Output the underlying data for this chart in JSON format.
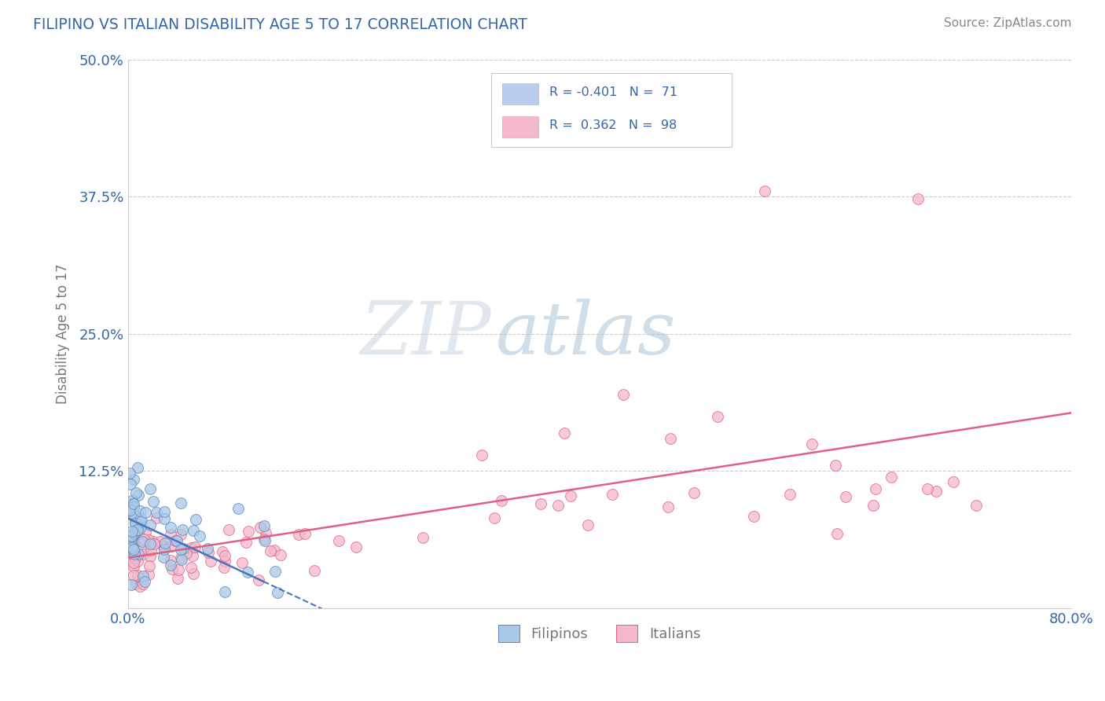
{
  "title": "FILIPINO VS ITALIAN DISABILITY AGE 5 TO 17 CORRELATION CHART",
  "source_text": "Source: ZipAtlas.com",
  "ylabel": "Disability Age 5 to 17",
  "xlim": [
    0.0,
    0.8
  ],
  "ylim": [
    0.0,
    0.5
  ],
  "ytick_positions": [
    0.125,
    0.25,
    0.375,
    0.5
  ],
  "ytick_labels": [
    "12.5%",
    "25.0%",
    "37.5%",
    "50.0%"
  ],
  "grid_color": "#cccccc",
  "bg_color": "#ffffff",
  "filipino_color": "#aac8e8",
  "italian_color": "#f4b8cc",
  "filipino_edge_color": "#5588bb",
  "italian_edge_color": "#e06080",
  "filipino_line_color": "#4477bb",
  "italian_line_color": "#e06080",
  "title_color": "#3366aa",
  "axis_label_color": "#777777",
  "tick_color": "#3366aa",
  "source_color": "#888888",
  "legend_box_color_filipino": "#bbccee",
  "legend_box_color_italian": "#f4b8cc",
  "watermark_zip_color": "#d0dae8",
  "watermark_atlas_color": "#b8ccdd"
}
